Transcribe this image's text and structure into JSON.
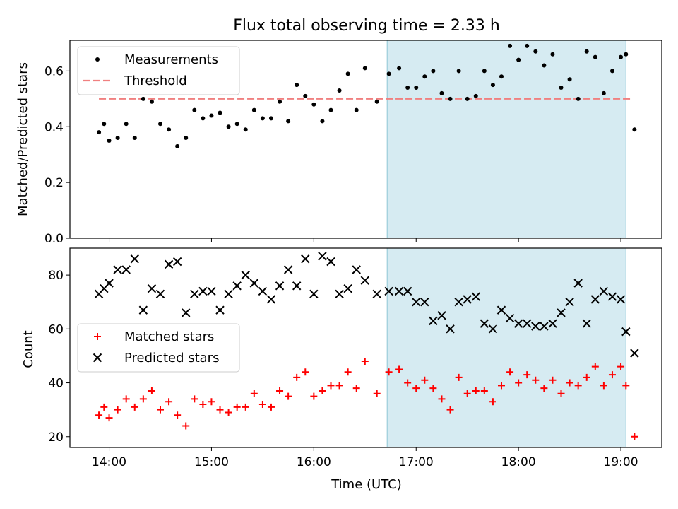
{
  "figure": {
    "title": "Flux total observing time = 2.33 h"
  },
  "chart_data": [
    {
      "type": "scatter",
      "panel": "top",
      "ylabel": "Matched/Predicted stars",
      "xlabel": "",
      "ylim": [
        0.0,
        0.71
      ],
      "yticks": [
        0.0,
        0.2,
        0.4,
        0.6
      ],
      "ytick_labels": [
        "0.0",
        "0.2",
        "0.4",
        "0.6"
      ],
      "xlim": [
        "13:37",
        "19:24"
      ],
      "grid": false,
      "legend_position": "top-left",
      "highlight_span": {
        "start": "16:43",
        "end": "19:03",
        "color": "#add8e6"
      },
      "series": [
        {
          "name": "Measurements",
          "marker": "dot",
          "color": "#000000",
          "points": [
            [
              "13:54",
              0.38
            ],
            [
              "13:57",
              0.41
            ],
            [
              "14:00",
              0.35
            ],
            [
              "14:05",
              0.36
            ],
            [
              "14:10",
              0.41
            ],
            [
              "14:15",
              0.36
            ],
            [
              "14:20",
              0.5
            ],
            [
              "14:25",
              0.49
            ],
            [
              "14:30",
              0.41
            ],
            [
              "14:35",
              0.39
            ],
            [
              "14:40",
              0.33
            ],
            [
              "14:45",
              0.36
            ],
            [
              "14:50",
              0.46
            ],
            [
              "14:55",
              0.43
            ],
            [
              "15:00",
              0.44
            ],
            [
              "15:05",
              0.45
            ],
            [
              "15:10",
              0.4
            ],
            [
              "15:15",
              0.41
            ],
            [
              "15:20",
              0.39
            ],
            [
              "15:25",
              0.46
            ],
            [
              "15:30",
              0.43
            ],
            [
              "15:35",
              0.43
            ],
            [
              "15:40",
              0.49
            ],
            [
              "15:45",
              0.42
            ],
            [
              "15:50",
              0.55
            ],
            [
              "15:55",
              0.51
            ],
            [
              "16:00",
              0.48
            ],
            [
              "16:05",
              0.42
            ],
            [
              "16:10",
              0.46
            ],
            [
              "16:15",
              0.53
            ],
            [
              "16:20",
              0.59
            ],
            [
              "16:25",
              0.46
            ],
            [
              "16:30",
              0.61
            ],
            [
              "16:37",
              0.49
            ],
            [
              "16:44",
              0.59
            ],
            [
              "16:50",
              0.61
            ],
            [
              "16:55",
              0.54
            ],
            [
              "17:00",
              0.54
            ],
            [
              "17:05",
              0.58
            ],
            [
              "17:10",
              0.6
            ],
            [
              "17:15",
              0.52
            ],
            [
              "17:20",
              0.5
            ],
            [
              "17:25",
              0.6
            ],
            [
              "17:30",
              0.5
            ],
            [
              "17:35",
              0.51
            ],
            [
              "17:40",
              0.6
            ],
            [
              "17:45",
              0.55
            ],
            [
              "17:50",
              0.58
            ],
            [
              "17:55",
              0.69
            ],
            [
              "18:00",
              0.64
            ],
            [
              "18:05",
              0.69
            ],
            [
              "18:10",
              0.67
            ],
            [
              "18:15",
              0.62
            ],
            [
              "18:20",
              0.66
            ],
            [
              "18:25",
              0.54
            ],
            [
              "18:30",
              0.57
            ],
            [
              "18:35",
              0.5
            ],
            [
              "18:40",
              0.67
            ],
            [
              "18:45",
              0.65
            ],
            [
              "18:50",
              0.52
            ],
            [
              "18:55",
              0.6
            ],
            [
              "19:00",
              0.65
            ],
            [
              "19:03",
              0.66
            ],
            [
              "19:08",
              0.39
            ]
          ]
        }
      ],
      "threshold": {
        "name": "Threshold",
        "value": 0.5,
        "from": "13:54",
        "to": "19:06",
        "color": "#f08080",
        "style": "dashed"
      }
    },
    {
      "type": "scatter",
      "panel": "bottom",
      "ylabel": "Count",
      "xlabel": "Time (UTC)",
      "ylim": [
        16,
        90
      ],
      "yticks": [
        20,
        40,
        60,
        80
      ],
      "ytick_labels": [
        "20",
        "40",
        "60",
        "80"
      ],
      "xlim": [
        "13:37",
        "19:24"
      ],
      "xticks": [
        "14:00",
        "15:00",
        "16:00",
        "17:00",
        "18:00",
        "19:00"
      ],
      "xtick_labels": [
        "14:00",
        "15:00",
        "16:00",
        "17:00",
        "18:00",
        "19:00"
      ],
      "grid": false,
      "legend_position": "center-left",
      "highlight_span": {
        "start": "16:43",
        "end": "19:03",
        "color": "#add8e6"
      },
      "series": [
        {
          "name": "Matched stars",
          "marker": "plus",
          "color": "#ff0000",
          "points": [
            [
              "13:54",
              28
            ],
            [
              "13:57",
              31
            ],
            [
              "14:00",
              27
            ],
            [
              "14:05",
              30
            ],
            [
              "14:10",
              34
            ],
            [
              "14:15",
              31
            ],
            [
              "14:20",
              34
            ],
            [
              "14:25",
              37
            ],
            [
              "14:30",
              30
            ],
            [
              "14:35",
              33
            ],
            [
              "14:40",
              28
            ],
            [
              "14:45",
              24
            ],
            [
              "14:50",
              34
            ],
            [
              "14:55",
              32
            ],
            [
              "15:00",
              33
            ],
            [
              "15:05",
              30
            ],
            [
              "15:10",
              29
            ],
            [
              "15:15",
              31
            ],
            [
              "15:20",
              31
            ],
            [
              "15:25",
              36
            ],
            [
              "15:30",
              32
            ],
            [
              "15:35",
              31
            ],
            [
              "15:40",
              37
            ],
            [
              "15:45",
              35
            ],
            [
              "15:50",
              42
            ],
            [
              "15:55",
              44
            ],
            [
              "16:00",
              35
            ],
            [
              "16:05",
              37
            ],
            [
              "16:10",
              39
            ],
            [
              "16:15",
              39
            ],
            [
              "16:20",
              44
            ],
            [
              "16:25",
              38
            ],
            [
              "16:30",
              48
            ],
            [
              "16:37",
              36
            ],
            [
              "16:44",
              44
            ],
            [
              "16:50",
              45
            ],
            [
              "16:55",
              40
            ],
            [
              "17:00",
              38
            ],
            [
              "17:05",
              41
            ],
            [
              "17:10",
              38
            ],
            [
              "17:15",
              34
            ],
            [
              "17:20",
              30
            ],
            [
              "17:25",
              42
            ],
            [
              "17:30",
              36
            ],
            [
              "17:35",
              37
            ],
            [
              "17:40",
              37
            ],
            [
              "17:45",
              33
            ],
            [
              "17:50",
              39
            ],
            [
              "17:55",
              44
            ],
            [
              "18:00",
              40
            ],
            [
              "18:05",
              43
            ],
            [
              "18:10",
              41
            ],
            [
              "18:15",
              38
            ],
            [
              "18:20",
              41
            ],
            [
              "18:25",
              36
            ],
            [
              "18:30",
              40
            ],
            [
              "18:35",
              39
            ],
            [
              "18:40",
              42
            ],
            [
              "18:45",
              46
            ],
            [
              "18:50",
              39
            ],
            [
              "18:55",
              43
            ],
            [
              "19:00",
              46
            ],
            [
              "19:03",
              39
            ],
            [
              "19:08",
              20
            ]
          ]
        },
        {
          "name": "Predicted stars",
          "marker": "x",
          "color": "#000000",
          "points": [
            [
              "13:54",
              73
            ],
            [
              "13:57",
              75
            ],
            [
              "14:00",
              77
            ],
            [
              "14:05",
              82
            ],
            [
              "14:10",
              82
            ],
            [
              "14:15",
              86
            ],
            [
              "14:20",
              67
            ],
            [
              "14:25",
              75
            ],
            [
              "14:30",
              73
            ],
            [
              "14:35",
              84
            ],
            [
              "14:40",
              85
            ],
            [
              "14:45",
              66
            ],
            [
              "14:50",
              73
            ],
            [
              "14:55",
              74
            ],
            [
              "15:00",
              74
            ],
            [
              "15:05",
              67
            ],
            [
              "15:10",
              73
            ],
            [
              "15:15",
              76
            ],
            [
              "15:20",
              80
            ],
            [
              "15:25",
              77
            ],
            [
              "15:30",
              74
            ],
            [
              "15:35",
              71
            ],
            [
              "15:40",
              76
            ],
            [
              "15:45",
              82
            ],
            [
              "15:50",
              76
            ],
            [
              "15:55",
              86
            ],
            [
              "16:00",
              73
            ],
            [
              "16:05",
              87
            ],
            [
              "16:10",
              85
            ],
            [
              "16:15",
              73
            ],
            [
              "16:20",
              75
            ],
            [
              "16:25",
              82
            ],
            [
              "16:30",
              78
            ],
            [
              "16:37",
              73
            ],
            [
              "16:44",
              74
            ],
            [
              "16:50",
              74
            ],
            [
              "16:55",
              74
            ],
            [
              "17:00",
              70
            ],
            [
              "17:05",
              70
            ],
            [
              "17:10",
              63
            ],
            [
              "17:15",
              65
            ],
            [
              "17:20",
              60
            ],
            [
              "17:25",
              70
            ],
            [
              "17:30",
              71
            ],
            [
              "17:35",
              72
            ],
            [
              "17:40",
              62
            ],
            [
              "17:45",
              60
            ],
            [
              "17:50",
              67
            ],
            [
              "17:55",
              64
            ],
            [
              "18:00",
              62
            ],
            [
              "18:05",
              62
            ],
            [
              "18:10",
              61
            ],
            [
              "18:15",
              61
            ],
            [
              "18:20",
              62
            ],
            [
              "18:25",
              66
            ],
            [
              "18:30",
              70
            ],
            [
              "18:35",
              77
            ],
            [
              "18:40",
              62
            ],
            [
              "18:45",
              71
            ],
            [
              "18:50",
              74
            ],
            [
              "18:55",
              72
            ],
            [
              "19:00",
              71
            ],
            [
              "19:03",
              59
            ],
            [
              "19:08",
              51
            ]
          ]
        }
      ]
    }
  ]
}
